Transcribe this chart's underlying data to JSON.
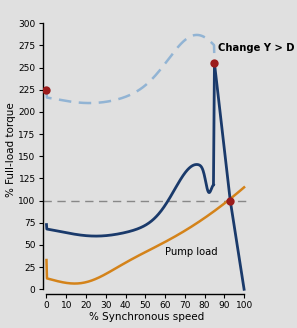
{
  "xlabel": "% Synchronous speed",
  "ylabel": "% Full-load torque",
  "xlim": [
    -2,
    103
  ],
  "ylim": [
    -5,
    320
  ],
  "xticks": [
    0,
    10,
    20,
    30,
    40,
    50,
    60,
    70,
    80,
    90,
    100
  ],
  "yticks": [
    0,
    25,
    50,
    75,
    100,
    125,
    150,
    175,
    200,
    225,
    250,
    275,
    300
  ],
  "bg_color": "#e0e0e0",
  "dashed_color": "#92b4d4",
  "solid_color": "#1a3a6b",
  "pump_color": "#d4831a",
  "dot_color": "#9b1c1c",
  "annotation_text": "Change Y > D",
  "pump_label": "Pump load",
  "hline_y": 100,
  "red_dot_1": [
    0,
    225
  ],
  "red_dot_2": [
    85,
    255
  ],
  "red_dot_3": [
    93,
    100
  ],
  "figsize": [
    2.97,
    3.28
  ],
  "dpi": 100
}
